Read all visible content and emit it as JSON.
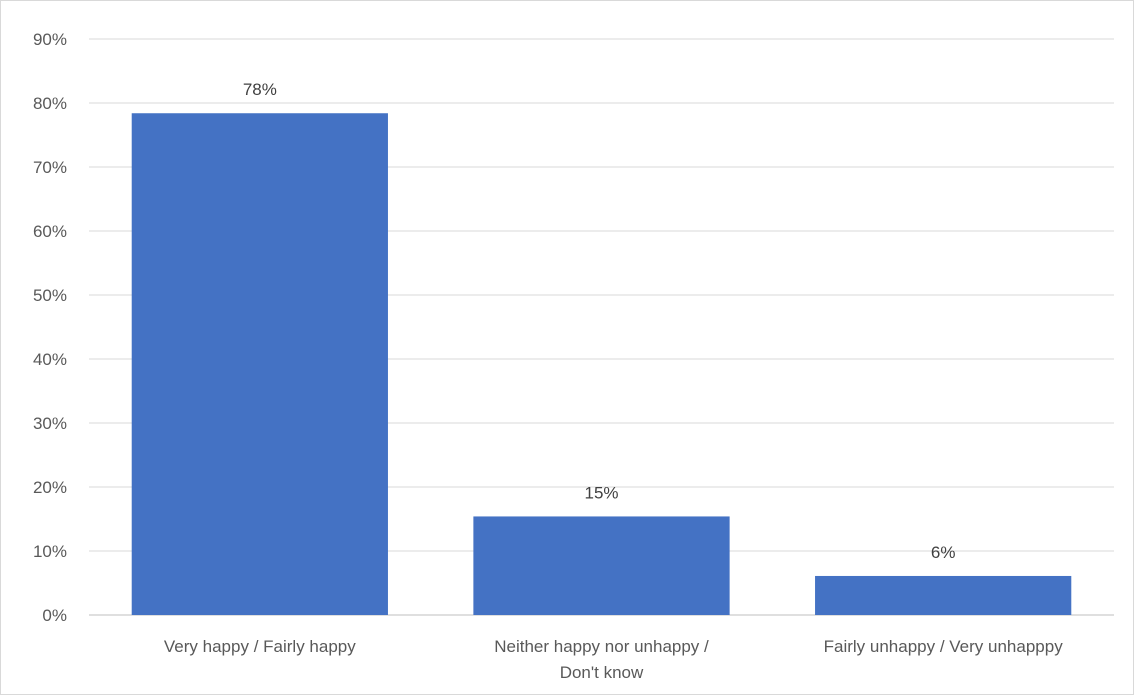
{
  "chart_data": {
    "type": "bar",
    "categories": [
      [
        "Very happy / Fairly happy"
      ],
      [
        "Neither happy nor unhappy /",
        "Don't know"
      ],
      [
        "Fairly unhappy / Very unhapppy"
      ]
    ],
    "values": [
      78.4,
      15.4,
      6.1
    ],
    "data_labels": [
      "78%",
      "15%",
      "6%"
    ],
    "yticks": [
      "0%",
      "10%",
      "20%",
      "30%",
      "40%",
      "50%",
      "60%",
      "70%",
      "80%",
      "90%"
    ],
    "ylim": [
      0,
      90
    ],
    "ytick_step": 10,
    "grid": true,
    "legend": "none",
    "bar_color": "#4472C4"
  }
}
